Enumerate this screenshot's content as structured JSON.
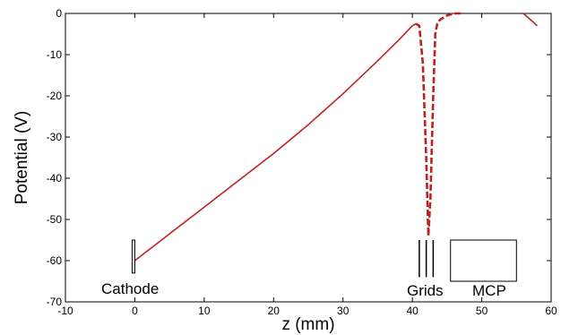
{
  "chart_data": {
    "type": "line",
    "title": "",
    "xlabel": "z (mm)",
    "ylabel": "Potential (V)",
    "xlim": [
      -10,
      60
    ],
    "ylim": [
      -70,
      0
    ],
    "xticks": [
      -10,
      0,
      10,
      20,
      30,
      40,
      50,
      60
    ],
    "yticks": [
      0,
      -10,
      -20,
      -30,
      -40,
      -50,
      -60,
      -70
    ],
    "grid": false,
    "line_color": "#c0201f",
    "series": [
      {
        "style": "solid",
        "x": [
          0,
          5,
          10,
          15,
          20,
          25,
          30,
          35,
          38,
          40,
          40.5
        ],
        "y": [
          -60,
          -53.5,
          -47,
          -40.5,
          -34,
          -27,
          -19.5,
          -11.5,
          -6.5,
          -3,
          -2.5
        ]
      },
      {
        "style": "dashed",
        "x": [
          40.5,
          41,
          41.5,
          42,
          42.3,
          42.6,
          43,
          43.3,
          43.6,
          44,
          44.5,
          45,
          46,
          47
        ],
        "y": [
          -2.5,
          -3,
          -12,
          -35,
          -54,
          -45,
          -20,
          -5,
          -2.5,
          -1.5,
          -1,
          -0.5,
          0,
          0
        ]
      },
      {
        "style": "solid",
        "x": [
          56,
          57,
          58
        ],
        "y": [
          0,
          -1.5,
          -3
        ]
      }
    ],
    "annotations": {
      "cathode": "Cathode",
      "grids": "Grids",
      "mcp": "MCP"
    },
    "grid_positions_mm": [
      41,
      42,
      43
    ],
    "cathode_z_mm": 0,
    "mcp_z_range_mm": [
      45.5,
      55
    ]
  }
}
